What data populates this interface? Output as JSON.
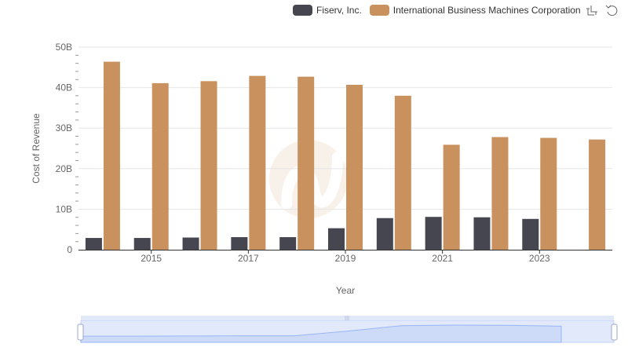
{
  "legend": {
    "series_a": "Fiserv, Inc.",
    "series_b": "International Business Machines Corporation"
  },
  "toolbar": {
    "zoom_icon": "zoom-select-icon",
    "reset_icon": "restore-icon"
  },
  "colors": {
    "series_a": "#464650",
    "series_b": "#c8915e",
    "grid": "#e6e6e6",
    "axis": "#333333",
    "zoom_fill": "#d6e2fb",
    "zoom_line": "#8fb0f7"
  },
  "chart_data": {
    "type": "bar",
    "xlabel": "Year",
    "ylabel": "Cost of Revenue",
    "ylim": [
      0,
      50
    ],
    "yticks": [
      "0",
      "10B",
      "20B",
      "30B",
      "40B",
      "50B"
    ],
    "xticks": [
      "2015",
      "2017",
      "2019",
      "2021",
      "2023"
    ],
    "categories": [
      "2014",
      "2015",
      "2016",
      "2017",
      "2018",
      "2019",
      "2020",
      "2021",
      "2022",
      "2023",
      "2024"
    ],
    "series": [
      {
        "name": "Fiserv, Inc.",
        "values": [
          2.9,
          2.9,
          3.0,
          3.1,
          3.1,
          5.3,
          7.8,
          8.1,
          8.0,
          7.6,
          null
        ]
      },
      {
        "name": "International Business Machines Corporation",
        "values": [
          46.4,
          41.1,
          41.6,
          42.9,
          42.7,
          40.7,
          38.0,
          25.9,
          27.8,
          27.6,
          27.2
        ]
      }
    ],
    "legend_position": "top-right",
    "grid": true
  }
}
